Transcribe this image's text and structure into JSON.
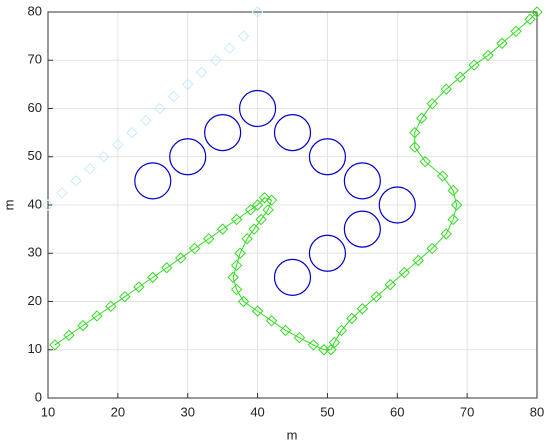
{
  "chart_data": {
    "type": "scatter",
    "xlabel": "m",
    "ylabel": "m",
    "xlim": [
      10,
      80
    ],
    "xticks": [
      10,
      20,
      30,
      40,
      50,
      60,
      70,
      80
    ],
    "ylim": [
      0,
      80
    ],
    "yticks": [
      0,
      10,
      20,
      30,
      40,
      50,
      60,
      70,
      80
    ],
    "grid": true,
    "series": [
      {
        "color": "#0000cc",
        "marker": "circle",
        "x": [
          25,
          30,
          35,
          40,
          45,
          50,
          55,
          60,
          55,
          50,
          45
        ],
        "y": [
          45,
          50,
          55,
          60,
          55,
          50,
          45,
          40,
          35,
          30,
          25
        ]
      },
      {
        "color": "#c8ecfa",
        "marker": "diamond",
        "line": false,
        "x": [
          10,
          12,
          14,
          16,
          18,
          20,
          22,
          24,
          26,
          28,
          30,
          32,
          34,
          36,
          38,
          40
        ],
        "y": [
          40,
          42.5,
          45,
          47.5,
          50,
          52.5,
          55,
          57.5,
          60,
          62.5,
          65,
          67.5,
          70,
          72.5,
          75,
          80
        ]
      },
      {
        "color": "#33dd22",
        "marker": "diamond",
        "line": true,
        "x": [
          11,
          13,
          15,
          17,
          19,
          21,
          23,
          25,
          27,
          29,
          31,
          33,
          35,
          37,
          39,
          40,
          41,
          42,
          41.5,
          40.5,
          39.5,
          38.5,
          37.5,
          37,
          36.5,
          37,
          38,
          40,
          42,
          44,
          46,
          48,
          49.5,
          50.5,
          51,
          52,
          53.5,
          55,
          57,
          59,
          61,
          63,
          65,
          67,
          68,
          68.5,
          68,
          66.5,
          64,
          62.5,
          62.5,
          63.5,
          65,
          67,
          69,
          71,
          73,
          75,
          77,
          79,
          80
        ],
        "y": [
          11,
          13,
          15,
          17,
          19,
          21,
          23,
          25,
          27,
          29,
          31,
          33,
          35,
          37,
          39,
          40,
          41.5,
          41,
          39,
          37,
          35,
          33,
          30,
          27.5,
          25,
          22.5,
          20,
          18,
          16,
          14,
          12.5,
          11,
          10,
          10,
          11.5,
          14,
          16.5,
          18.5,
          21,
          23.5,
          26,
          28.5,
          31,
          34,
          37,
          40,
          43,
          46,
          49,
          52,
          55,
          58,
          61,
          64,
          66.5,
          69,
          71,
          73.5,
          76,
          78.5,
          80
        ]
      }
    ]
  }
}
